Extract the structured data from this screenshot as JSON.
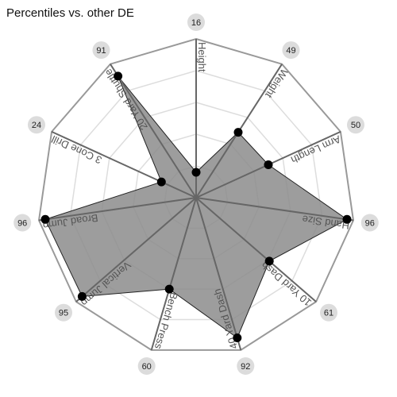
{
  "chart_data": {
    "type": "radar",
    "title": "Percentiles vs. other DE",
    "rlim": [
      0,
      100
    ],
    "grid": true,
    "ring_values": [
      20,
      40,
      60,
      80,
      100
    ],
    "categories": [
      "Height",
      "Weight",
      "Arm Length",
      "Hand Size",
      "10 Yard Dash",
      "40 Yard Dash",
      "Bench Press",
      "Vertical Jump",
      "Broad Jump",
      "3 Cone Drill",
      "20 Yard Shuttle"
    ],
    "values": [
      16,
      49,
      50,
      96,
      61,
      92,
      60,
      95,
      96,
      24,
      91
    ],
    "value_labels": [
      "16",
      "49",
      "50",
      "96",
      "61",
      "92",
      "60",
      "95",
      "96",
      "24",
      "91"
    ],
    "colors": {
      "fill": "#8c8c8c",
      "stroke": "#222222",
      "point": "#000000",
      "outer_ring": "#999999",
      "inner_ring": "#dddddd",
      "spoke": "#666666",
      "badge": "#dcdcdc"
    }
  }
}
